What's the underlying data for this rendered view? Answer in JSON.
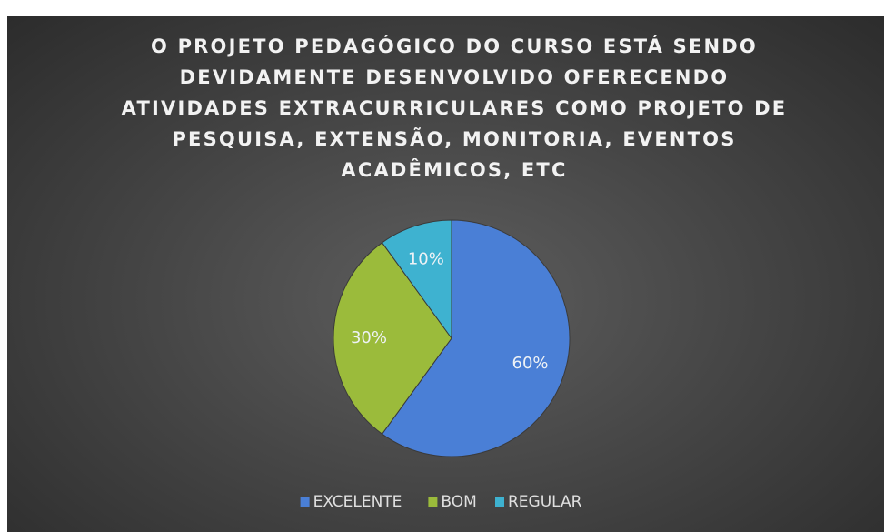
{
  "chart_data": {
    "type": "pie",
    "title": "O PROJETO PEDAGÓGICO DO CURSO ESTÁ SENDO DEVIDAMENTE DESENVOLVIDO OFERECENDO ATIVIDADES EXTRACURRICULARES COMO PROJETO DE PESQUISA, EXTENSÃO, MONITORIA, EVENTOS ACADÊMICOS, ETC",
    "categories": [
      "EXCELENTE",
      "BOM",
      "REGULAR"
    ],
    "values": [
      60,
      30,
      10
    ],
    "value_labels": [
      "60%",
      "30%",
      "10%"
    ],
    "colors": [
      "#4a7fd6",
      "#9bbb3b",
      "#3eb2d0"
    ],
    "legend": "bottom"
  }
}
